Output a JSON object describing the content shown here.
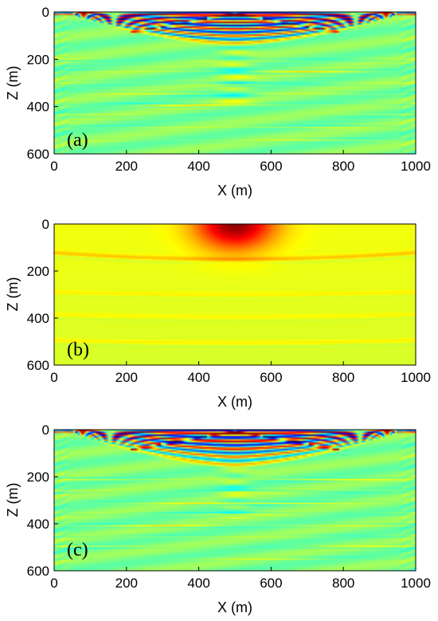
{
  "chart_data": [
    {
      "type": "heatmap",
      "panel_label": "(a)",
      "xlabel": "X (m)",
      "ylabel": "Z (m)",
      "xlim": [
        0,
        1000
      ],
      "ylim": [
        0,
        600
      ],
      "y_inverted": true,
      "xticks": [
        0,
        200,
        400,
        600,
        800,
        1000
      ],
      "yticks": [
        0,
        200,
        400,
        600
      ],
      "colormap": "jet",
      "background_value": 0.5,
      "source_x": 500,
      "near_surface": {
        "x_half_width": 450,
        "depth_edge": 20,
        "depth_center": 145,
        "shape_power": 1.6,
        "sequence": [
          0.02,
          0.98,
          0.06,
          0.95,
          0.05,
          0.9,
          0.12,
          0.82,
          0.22,
          0.72
        ]
      },
      "reflector_depths": [
        205,
        255,
        305,
        350,
        395,
        440,
        490,
        545
      ],
      "reflector_amplitudes": [
        0.1,
        0.12,
        0.15,
        0.1,
        0.13,
        0.08,
        0.1,
        0.07
      ],
      "diffraction_curvature": 0.12,
      "central_anomaly": {
        "x_half_width": 35,
        "z_range": [
          150,
          400
        ],
        "amplitude": 0.1
      }
    },
    {
      "type": "heatmap",
      "panel_label": "(b)",
      "xlabel": "X (m)",
      "ylabel": "Z (m)",
      "xlim": [
        0,
        1000
      ],
      "ylim": [
        0,
        600
      ],
      "y_inverted": true,
      "xticks": [
        0,
        200,
        400,
        600,
        800,
        1000
      ],
      "yticks": [
        0,
        200,
        400,
        600
      ],
      "colormap": "jet",
      "background_value": 0.6,
      "source": {
        "x": 500,
        "z": 0,
        "peak_value": 0.97,
        "radius": 140
      },
      "layers": [
        {
          "depth_edge": 122,
          "depth_center": 150,
          "amplitude": 0.08
        },
        {
          "depth_edge": 290,
          "depth_center": 300,
          "amplitude": 0.04
        },
        {
          "depth_edge": 385,
          "depth_center": 395,
          "amplitude": 0.04
        },
        {
          "depth_edge": 495,
          "depth_center": 505,
          "amplitude": 0.05
        }
      ]
    },
    {
      "type": "heatmap",
      "panel_label": "(c)",
      "xlabel": "X (m)",
      "ylabel": "Z (m)",
      "xlim": [
        0,
        1000
      ],
      "ylim": [
        0,
        600
      ],
      "y_inverted": true,
      "xticks": [
        0,
        200,
        400,
        600,
        800,
        1000
      ],
      "yticks": [
        0,
        200,
        400,
        600
      ],
      "colormap": "jet",
      "background_value": 0.5,
      "source_x": 500,
      "near_surface": {
        "x_half_width": 450,
        "depth_edge": 20,
        "depth_center": 165,
        "shape_power": 1.5,
        "sequence": [
          0.02,
          0.98,
          0.05,
          0.96,
          0.1,
          0.88,
          0.2,
          0.78,
          0.3,
          0.7
        ]
      },
      "reflector_depths": [
        215,
        265,
        315,
        360,
        410,
        455,
        500,
        550
      ],
      "reflector_amplitudes": [
        0.12,
        0.12,
        0.14,
        0.12,
        0.12,
        0.09,
        0.1,
        0.07
      ],
      "diffraction_curvature": 0.12,
      "central_anomaly": {
        "x_half_width": 30,
        "z_range": [
          160,
          380
        ],
        "amplitude": 0.08
      }
    }
  ]
}
